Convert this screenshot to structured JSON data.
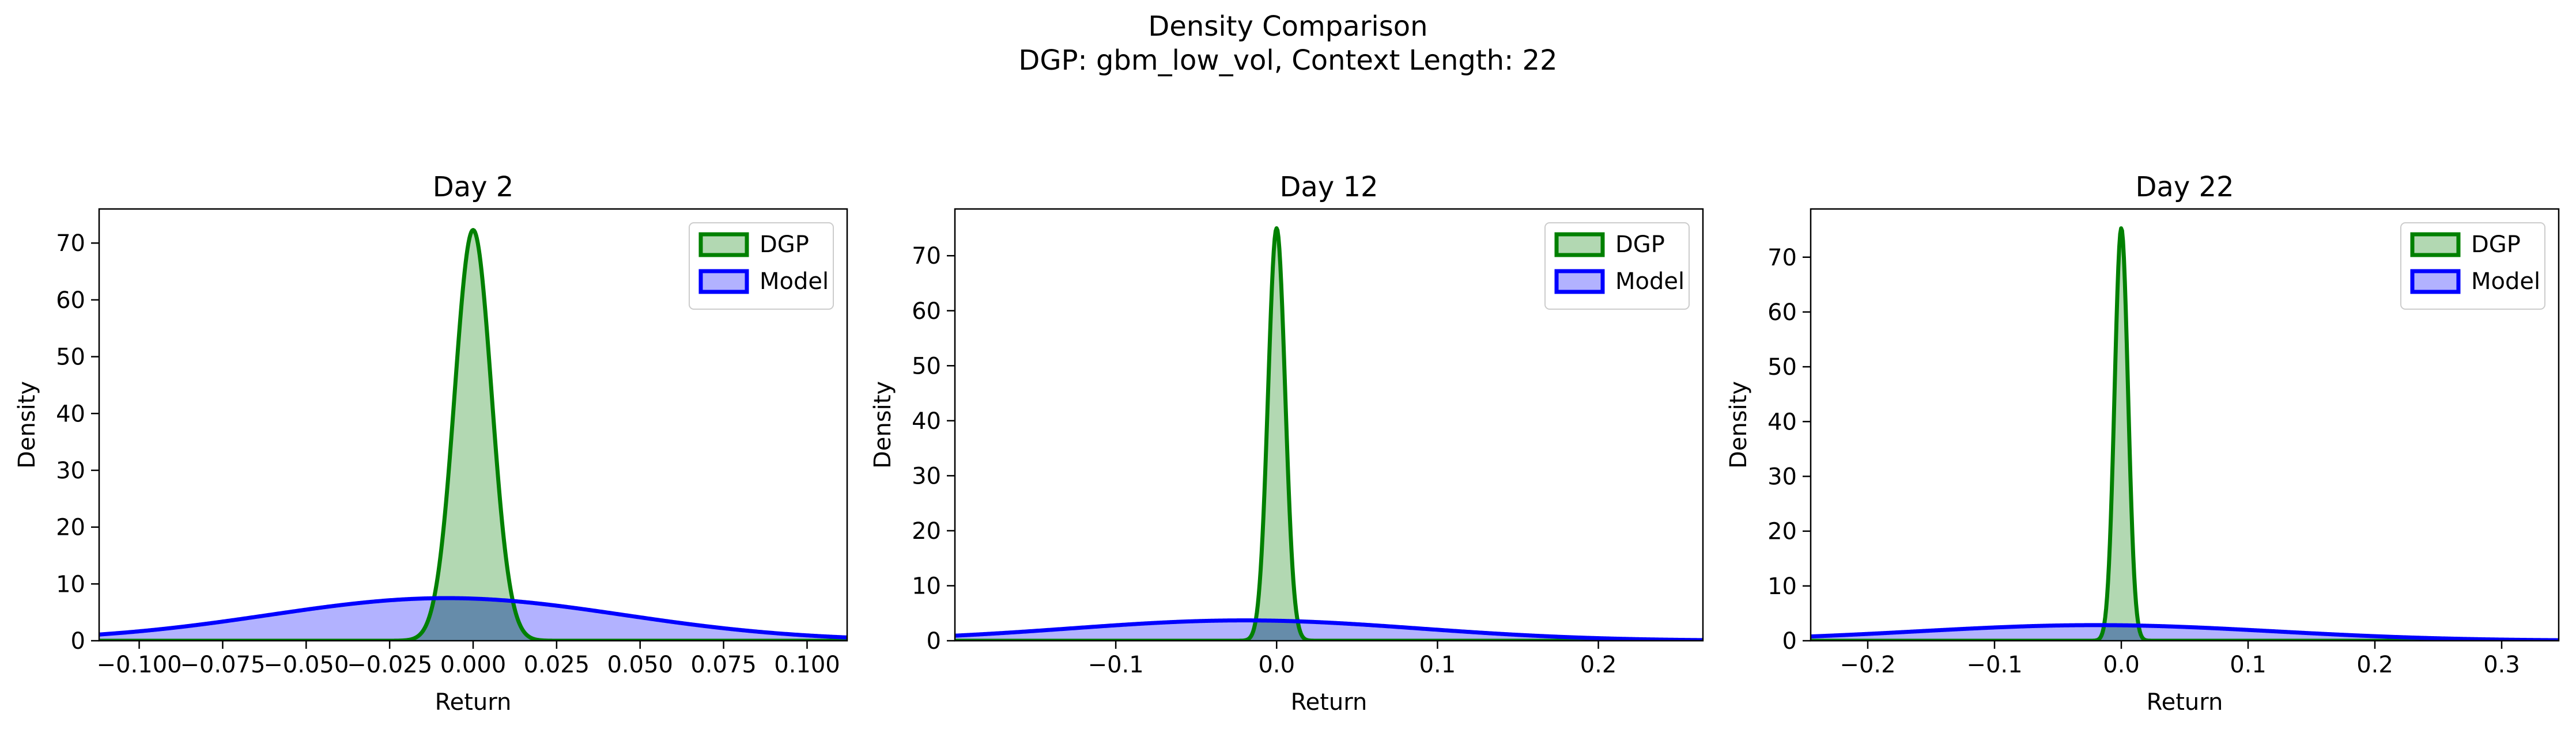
{
  "figure": {
    "title": "Density Comparison",
    "subtitle": "DGP: gbm_low_vol, Context Length: 22"
  },
  "colors": {
    "dgp_line": "#008000",
    "dgp_fill": "#b2d8b2",
    "model_line": "#0000ff",
    "model_fill": "#b2b2ff",
    "overlap_fill": "#668caa"
  },
  "legend": {
    "placement": "upper-right",
    "entries": [
      "DGP",
      "Model"
    ]
  },
  "chart_data": [
    {
      "type": "area",
      "title": "Day 2",
      "xlabel": "Return",
      "ylabel": "Density",
      "xlim": [
        -0.112,
        0.112
      ],
      "ylim": [
        0,
        76
      ],
      "xticks": [
        -0.1,
        -0.075,
        -0.05,
        -0.025,
        0.0,
        0.025,
        0.05,
        0.075,
        0.1
      ],
      "xtick_labels": [
        "−0.100",
        "−0.075",
        "−0.050",
        "−0.025",
        "0.000",
        "0.025",
        "0.050",
        "0.075",
        "0.100"
      ],
      "yticks": [
        0,
        10,
        20,
        30,
        40,
        50,
        60,
        70
      ],
      "ytick_labels": [
        "0",
        "10",
        "20",
        "30",
        "40",
        "50",
        "60",
        "70"
      ],
      "grid": false,
      "series": [
        {
          "name": "DGP",
          "distribution": "normal",
          "mean": 0.0,
          "std": 0.0055,
          "peak": 72.3
        },
        {
          "name": "Model",
          "distribution": "normal",
          "mean": -0.008,
          "std": 0.053,
          "peak": 7.5
        }
      ]
    },
    {
      "type": "area",
      "title": "Day 12",
      "xlabel": "Return",
      "ylabel": "Density",
      "xlim": [
        -0.2,
        0.265
      ],
      "ylim": [
        0,
        78.5
      ],
      "xticks": [
        -0.1,
        0.0,
        0.1,
        0.2
      ],
      "xtick_labels": [
        "−0.1",
        "0.0",
        "0.1",
        "0.2"
      ],
      "yticks": [
        0,
        10,
        20,
        30,
        40,
        50,
        60,
        70
      ],
      "ytick_labels": [
        "0",
        "10",
        "20",
        "30",
        "40",
        "50",
        "60",
        "70"
      ],
      "grid": false,
      "series": [
        {
          "name": "DGP",
          "distribution": "normal",
          "mean": 0.0,
          "std": 0.0053,
          "peak": 75.0
        },
        {
          "name": "Model",
          "distribution": "normal",
          "mean": -0.02,
          "std": 0.108,
          "peak": 3.7
        }
      ]
    },
    {
      "type": "area",
      "title": "Day 22",
      "xlabel": "Return",
      "ylabel": "Density",
      "xlim": [
        -0.245,
        0.345
      ],
      "ylim": [
        0,
        78.8
      ],
      "xticks": [
        -0.2,
        -0.1,
        0.0,
        0.1,
        0.2,
        0.3
      ],
      "xtick_labels": [
        "−0.2",
        "−0.1",
        "0.0",
        "0.1",
        "0.2",
        "0.3"
      ],
      "yticks": [
        0,
        10,
        20,
        30,
        40,
        50,
        60,
        70
      ],
      "ytick_labels": [
        "0",
        "10",
        "20",
        "30",
        "40",
        "50",
        "60",
        "70"
      ],
      "grid": false,
      "series": [
        {
          "name": "DGP",
          "distribution": "normal",
          "mean": 0.0,
          "std": 0.0053,
          "peak": 75.3
        },
        {
          "name": "Model",
          "distribution": "normal",
          "mean": -0.02,
          "std": 0.14,
          "peak": 2.85
        }
      ]
    }
  ]
}
